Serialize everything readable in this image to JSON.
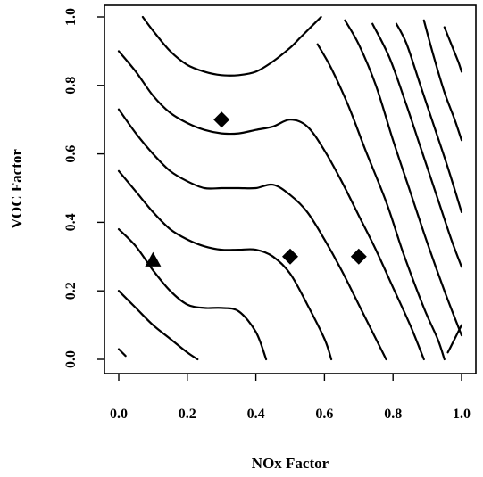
{
  "chart_data": {
    "type": "contour",
    "xlabel": "NOx Factor",
    "ylabel": "VOC Factor",
    "xlim": [
      0.0,
      1.0
    ],
    "ylim": [
      0.0,
      1.0
    ],
    "x_ticks": [
      "0.0",
      "0.2",
      "0.4",
      "0.6",
      "0.8",
      "1.0"
    ],
    "y_ticks": [
      "0.0",
      "0.2",
      "0.4",
      "0.6",
      "0.8",
      "1.0"
    ],
    "grid": false,
    "legend": "none",
    "contours": [
      {
        "points": [
          [
            0.0,
            0.03
          ],
          [
            0.02,
            0.01
          ]
        ]
      },
      {
        "points": [
          [
            0.0,
            0.2
          ],
          [
            0.05,
            0.15
          ],
          [
            0.1,
            0.1
          ],
          [
            0.15,
            0.06
          ],
          [
            0.2,
            0.02
          ],
          [
            0.23,
            0.0
          ]
        ]
      },
      {
        "points": [
          [
            0.0,
            0.38
          ],
          [
            0.05,
            0.33
          ],
          [
            0.1,
            0.26
          ],
          [
            0.15,
            0.2
          ],
          [
            0.2,
            0.16
          ],
          [
            0.25,
            0.15
          ],
          [
            0.3,
            0.15
          ],
          [
            0.35,
            0.14
          ],
          [
            0.4,
            0.08
          ],
          [
            0.43,
            0.0
          ]
        ]
      },
      {
        "points": [
          [
            0.0,
            0.55
          ],
          [
            0.05,
            0.49
          ],
          [
            0.1,
            0.43
          ],
          [
            0.15,
            0.38
          ],
          [
            0.2,
            0.35
          ],
          [
            0.25,
            0.33
          ],
          [
            0.3,
            0.32
          ],
          [
            0.35,
            0.32
          ],
          [
            0.4,
            0.32
          ],
          [
            0.45,
            0.3
          ],
          [
            0.5,
            0.25
          ],
          [
            0.55,
            0.16
          ],
          [
            0.6,
            0.06
          ],
          [
            0.62,
            0.0
          ]
        ]
      },
      {
        "points": [
          [
            0.0,
            0.73
          ],
          [
            0.05,
            0.66
          ],
          [
            0.1,
            0.6
          ],
          [
            0.15,
            0.55
          ],
          [
            0.2,
            0.52
          ],
          [
            0.25,
            0.5
          ],
          [
            0.3,
            0.5
          ],
          [
            0.35,
            0.5
          ],
          [
            0.4,
            0.5
          ],
          [
            0.45,
            0.51
          ],
          [
            0.5,
            0.48
          ],
          [
            0.55,
            0.43
          ],
          [
            0.6,
            0.35
          ],
          [
            0.65,
            0.26
          ],
          [
            0.7,
            0.16
          ],
          [
            0.75,
            0.06
          ],
          [
            0.78,
            0.0
          ]
        ]
      },
      {
        "points": [
          [
            0.0,
            0.9
          ],
          [
            0.05,
            0.84
          ],
          [
            0.1,
            0.77
          ],
          [
            0.15,
            0.72
          ],
          [
            0.2,
            0.69
          ],
          [
            0.25,
            0.67
          ],
          [
            0.3,
            0.66
          ],
          [
            0.35,
            0.66
          ],
          [
            0.4,
            0.67
          ],
          [
            0.45,
            0.68
          ],
          [
            0.5,
            0.7
          ],
          [
            0.55,
            0.68
          ],
          [
            0.6,
            0.61
          ],
          [
            0.65,
            0.52
          ],
          [
            0.7,
            0.42
          ],
          [
            0.75,
            0.32
          ],
          [
            0.8,
            0.21
          ],
          [
            0.85,
            0.1
          ],
          [
            0.89,
            0.0
          ]
        ]
      },
      {
        "points": [
          [
            0.07,
            1.0
          ],
          [
            0.1,
            0.96
          ],
          [
            0.15,
            0.9
          ],
          [
            0.2,
            0.86
          ],
          [
            0.25,
            0.84
          ],
          [
            0.3,
            0.83
          ],
          [
            0.35,
            0.83
          ],
          [
            0.4,
            0.84
          ],
          [
            0.45,
            0.87
          ],
          [
            0.5,
            0.91
          ],
          [
            0.53,
            0.94
          ],
          [
            0.57,
            0.98
          ],
          [
            0.59,
            1.0
          ]
        ]
      },
      {
        "points": [
          [
            0.58,
            0.92
          ],
          [
            0.62,
            0.85
          ],
          [
            0.67,
            0.74
          ],
          [
            0.72,
            0.61
          ],
          [
            0.78,
            0.46
          ],
          [
            0.83,
            0.31
          ],
          [
            0.89,
            0.15
          ],
          [
            0.93,
            0.06
          ],
          [
            0.95,
            0.0
          ]
        ]
      },
      {
        "points": [
          [
            0.66,
            0.99
          ],
          [
            0.7,
            0.92
          ],
          [
            0.75,
            0.8
          ],
          [
            0.8,
            0.64
          ],
          [
            0.85,
            0.49
          ],
          [
            0.9,
            0.34
          ],
          [
            0.95,
            0.2
          ],
          [
            1.0,
            0.07
          ]
        ]
      },
      {
        "points": [
          [
            0.74,
            0.98
          ],
          [
            0.79,
            0.88
          ],
          [
            0.84,
            0.74
          ],
          [
            0.88,
            0.62
          ],
          [
            0.93,
            0.47
          ],
          [
            0.97,
            0.35
          ],
          [
            1.0,
            0.27
          ]
        ]
      },
      {
        "points": [
          [
            0.81,
            0.98
          ],
          [
            0.84,
            0.92
          ],
          [
            0.88,
            0.8
          ],
          [
            0.92,
            0.68
          ],
          [
            0.96,
            0.56
          ],
          [
            1.0,
            0.43
          ]
        ]
      },
      {
        "points": [
          [
            0.89,
            0.99
          ],
          [
            0.92,
            0.88
          ],
          [
            0.95,
            0.78
          ],
          [
            0.98,
            0.7
          ],
          [
            1.0,
            0.64
          ]
        ]
      },
      {
        "points": [
          [
            0.95,
            0.97
          ],
          [
            0.97,
            0.92
          ],
          [
            0.99,
            0.87
          ],
          [
            1.0,
            0.84
          ]
        ]
      },
      {
        "points": [
          [
            0.96,
            0.02
          ],
          [
            0.98,
            0.06
          ],
          [
            1.0,
            0.1
          ]
        ]
      }
    ],
    "markers": [
      {
        "shape": "diamond",
        "x": 0.3,
        "y": 0.7
      },
      {
        "shape": "diamond",
        "x": 0.5,
        "y": 0.3
      },
      {
        "shape": "diamond",
        "x": 0.7,
        "y": 0.3
      },
      {
        "shape": "triangle",
        "x": 0.1,
        "y": 0.29
      }
    ]
  }
}
